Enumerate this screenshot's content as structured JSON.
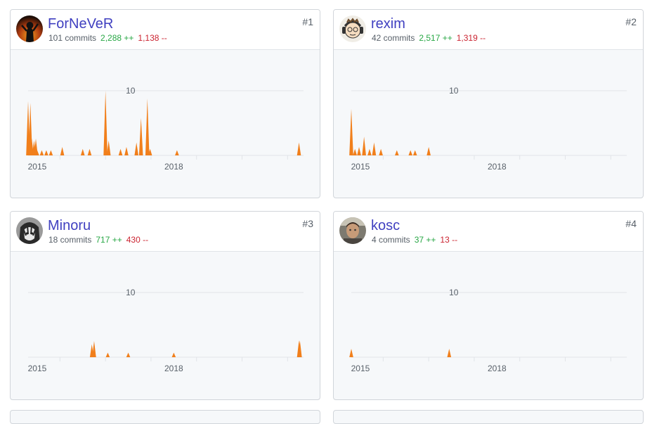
{
  "contributors": [
    {
      "rank": "#1",
      "name": "ForNeVeR",
      "commits": "101 commits",
      "additions": "2,288 ++",
      "deletions": "1,138 --",
      "avatar_icon": "avatar-dark-fiery-icon",
      "chart_data": {
        "type": "area",
        "x_tick_labels": [
          "2015",
          "2018"
        ],
        "y_tick_labels": [
          "10"
        ],
        "ylim": [
          0,
          10
        ],
        "grid": true,
        "x": [
          2014.8,
          2014.85,
          2014.88,
          2014.93,
          2014.97,
          2015.0,
          2015.1,
          2015.2,
          2015.3,
          2015.55,
          2016.0,
          2016.15,
          2016.5,
          2016.57,
          2016.83,
          2016.96,
          2017.18,
          2017.28,
          2017.42,
          2017.48,
          2018.07,
          2020.75
        ],
        "values": [
          8.4,
          8.1,
          2.6,
          2.3,
          2.6,
          0.8,
          0.8,
          0.8,
          0.8,
          1.3,
          1.0,
          1.0,
          10.0,
          2.3,
          1.0,
          1.3,
          2.0,
          5.8,
          8.8,
          1.0,
          0.8,
          2.0
        ]
      }
    },
    {
      "rank": "#2",
      "name": "rexim",
      "commits": "42 commits",
      "additions": "2,517 ++",
      "deletions": "1,319 --",
      "avatar_icon": "avatar-cartoon-headphones-icon",
      "chart_data": {
        "type": "area",
        "x_tick_labels": [
          "2015",
          "2018"
        ],
        "y_tick_labels": [
          "10"
        ],
        "ylim": [
          0,
          10
        ],
        "grid": true,
        "x": [
          2014.8,
          2014.88,
          2014.97,
          2015.08,
          2015.2,
          2015.3,
          2015.45,
          2015.8,
          2016.1,
          2016.2,
          2016.5
        ],
        "values": [
          7.2,
          1.0,
          1.3,
          2.9,
          1.0,
          2.0,
          1.0,
          0.8,
          0.8,
          0.8,
          1.3
        ]
      }
    },
    {
      "rank": "#3",
      "name": "Minoru",
      "commits": "18 commits",
      "additions": "717 ++",
      "deletions": "430 --",
      "avatar_icon": "avatar-anime-character-icon",
      "chart_data": {
        "type": "area",
        "x_tick_labels": [
          "2015",
          "2018"
        ],
        "y_tick_labels": [
          "10"
        ],
        "ylim": [
          0,
          10
        ],
        "grid": true,
        "x": [
          2016.2,
          2016.25,
          2016.55,
          2017.0,
          2018.0,
          2020.75,
          2020.77
        ],
        "values": [
          2.0,
          2.5,
          0.7,
          0.7,
          0.7,
          2.6,
          2.6
        ]
      }
    },
    {
      "rank": "#4",
      "name": "kosc",
      "commits": "4 commits",
      "additions": "37 ++",
      "deletions": "13 --",
      "avatar_icon": "avatar-photo-person-icon",
      "chart_data": {
        "type": "area",
        "x_tick_labels": [
          "2015",
          "2018"
        ],
        "y_tick_labels": [
          "10"
        ],
        "ylim": [
          0,
          10
        ],
        "grid": true,
        "x": [
          2014.8,
          2016.95
        ],
        "values": [
          1.3,
          1.3
        ]
      }
    }
  ],
  "colors": {
    "area": "#f17f1b",
    "name_link": "#4040c0",
    "additions": "#28a745",
    "deletions": "#cb2431",
    "grid": "#e1e4e8",
    "axis_text": "#586069"
  }
}
